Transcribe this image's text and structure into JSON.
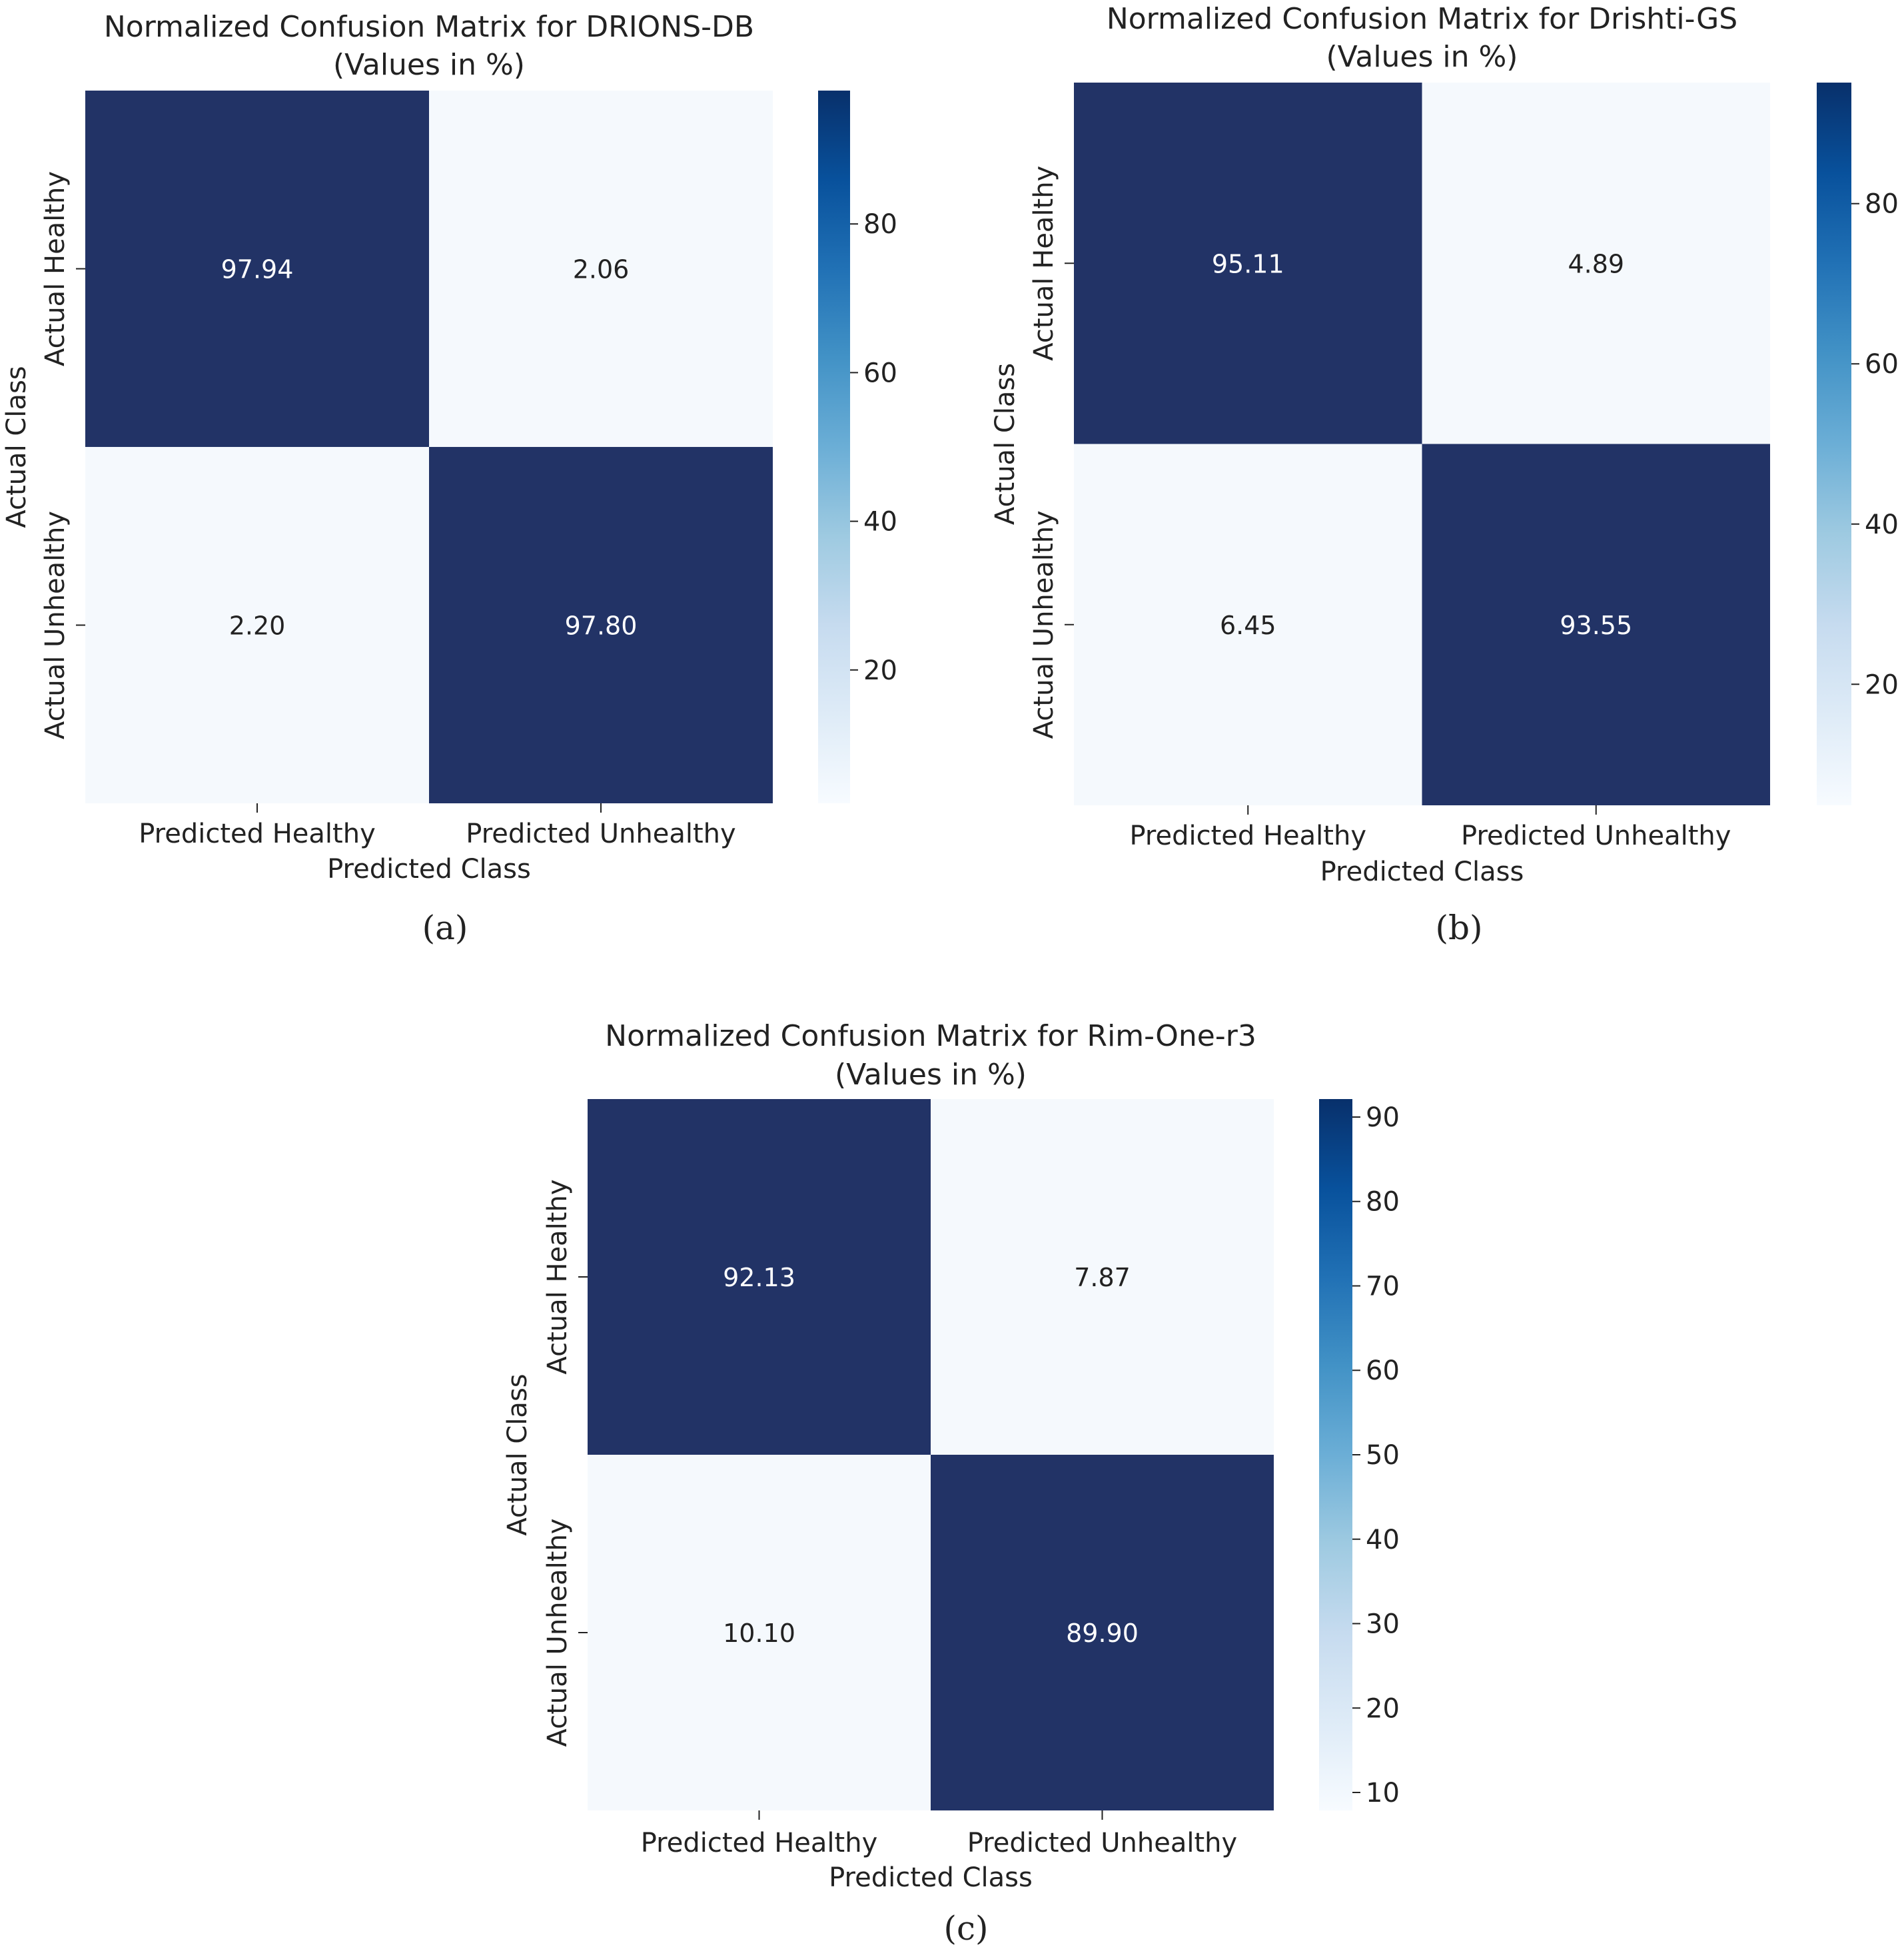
{
  "figure": {
    "panel_labels": [
      "(a)",
      "(b)",
      "(c)"
    ]
  },
  "chart_data": [
    {
      "type": "heatmap",
      "title": "Normalized Confusion Matrix for DRIONS-DB",
      "subtitle": "(Values in %)",
      "xlabel": "Predicted Class",
      "ylabel": "Actual Class",
      "x_categories": [
        "Predicted Healthy",
        "Predicted Unhealthy"
      ],
      "y_categories": [
        "Actual Healthy",
        "Actual Unhealthy"
      ],
      "values": [
        [
          97.94,
          2.06
        ],
        [
          2.2,
          97.8
        ]
      ],
      "cell_labels": [
        [
          "97.94",
          "2.06"
        ],
        [
          "2.20",
          "97.80"
        ]
      ],
      "colorbar": {
        "colormap": "Blues",
        "range": [
          2.06,
          97.94
        ],
        "ticks": [
          20,
          40,
          60,
          80
        ]
      },
      "panel_label": "(a)"
    },
    {
      "type": "heatmap",
      "title": "Normalized Confusion Matrix for Drishti-GS",
      "subtitle": "(Values in %)",
      "xlabel": "Predicted Class",
      "ylabel": "Actual Class",
      "x_categories": [
        "Predicted Healthy",
        "Predicted Unhealthy"
      ],
      "y_categories": [
        "Actual Healthy",
        "Actual Unhealthy"
      ],
      "values": [
        [
          95.11,
          4.89
        ],
        [
          6.45,
          93.55
        ]
      ],
      "cell_labels": [
        [
          "95.11",
          "4.89"
        ],
        [
          "6.45",
          "93.55"
        ]
      ],
      "colorbar": {
        "colormap": "Blues",
        "range": [
          4.89,
          95.11
        ],
        "ticks": [
          20,
          40,
          60,
          80
        ]
      },
      "panel_label": "(b)"
    },
    {
      "type": "heatmap",
      "title": "Normalized Confusion Matrix for Rim-One-r3",
      "subtitle": "(Values in %)",
      "xlabel": "Predicted Class",
      "ylabel": "Actual Class",
      "x_categories": [
        "Predicted Healthy",
        "Predicted Unhealthy"
      ],
      "y_categories": [
        "Actual Healthy",
        "Actual Unhealthy"
      ],
      "values": [
        [
          92.13,
          7.87
        ],
        [
          10.1,
          89.9
        ]
      ],
      "cell_labels": [
        [
          "92.13",
          "7.87"
        ],
        [
          "10.10",
          "89.90"
        ]
      ],
      "colorbar": {
        "colormap": "Blues",
        "range": [
          7.87,
          92.13
        ],
        "ticks": [
          10,
          20,
          30,
          40,
          50,
          60,
          70,
          80,
          90
        ]
      },
      "panel_label": "(c)"
    }
  ]
}
